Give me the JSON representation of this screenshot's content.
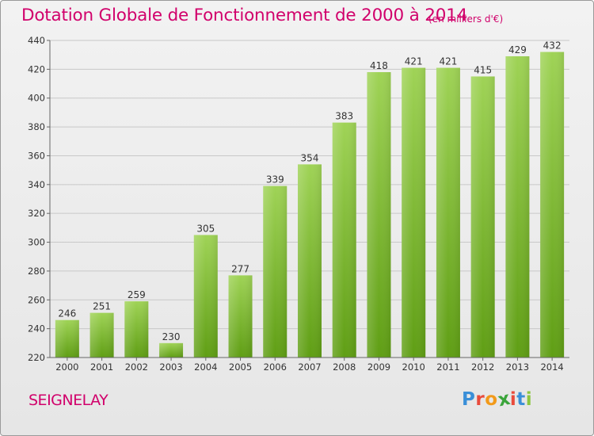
{
  "header": {
    "title": "Dotation Globale de Fonctionnement de 2000 à 2014",
    "subtitle": "(en milliers d'€)"
  },
  "footer": {
    "commune": "SEIGNELAY",
    "logo_letters": [
      "P",
      "r",
      "o",
      "x",
      "i",
      "t",
      "i"
    ],
    "logo_colors": [
      "#3a8fd8",
      "#e94b3c",
      "#f29a1a",
      "#3aa43a",
      "#e94b3c",
      "#3a8fd8",
      "#8cc63f"
    ]
  },
  "colors": {
    "accent": "#d1006b",
    "bar_light": "#9fd356",
    "bar_dark": "#5f9e14",
    "grid": "#c8c8c8",
    "axis_text": "#333333"
  },
  "chart_data": {
    "type": "bar",
    "categories": [
      "2000",
      "2001",
      "2002",
      "2003",
      "2004",
      "2005",
      "2006",
      "2007",
      "2008",
      "2009",
      "2010",
      "2011",
      "2012",
      "2013",
      "2014"
    ],
    "values": [
      246,
      251,
      259,
      230,
      305,
      277,
      339,
      354,
      383,
      418,
      421,
      421,
      415,
      429,
      432
    ],
    "yticks": [
      220,
      240,
      260,
      280,
      300,
      320,
      340,
      360,
      380,
      400,
      420,
      440
    ],
    "ylim": [
      220,
      440
    ],
    "grid": true,
    "title": "Dotation Globale de Fonctionnement de 2000 à 2014",
    "subtitle": "(en milliers d'€)"
  }
}
